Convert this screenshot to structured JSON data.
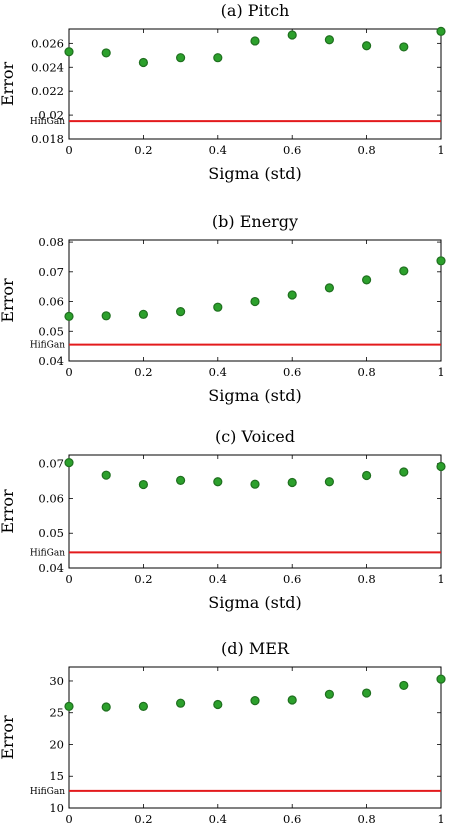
{
  "colors": {
    "marker": "#2ca02c",
    "marker_edge": "#1f6f1f",
    "baseline": "#e31a1c"
  },
  "chart_data": [
    {
      "type": "scatter",
      "title": "(a) Pitch",
      "xlabel": "Sigma (std)",
      "ylabel": "Error",
      "xlim": [
        0,
        1
      ],
      "ylim": [
        0.018,
        0.0272
      ],
      "xticks": [
        {
          "v": 0,
          "label": "0"
        },
        {
          "v": 0.2,
          "label": "0.2"
        },
        {
          "v": 0.4,
          "label": "0.4"
        },
        {
          "v": 0.6,
          "label": "0.6"
        },
        {
          "v": 0.8,
          "label": "0.8"
        },
        {
          "v": 1,
          "label": "1"
        }
      ],
      "yticks": [
        {
          "v": 0.018,
          "label": "0.018"
        },
        {
          "v": 0.02,
          "label": "0.02"
        },
        {
          "v": 0.022,
          "label": "0.022"
        },
        {
          "v": 0.024,
          "label": "0.024"
        },
        {
          "v": 0.026,
          "label": "0.026"
        }
      ],
      "baseline": {
        "label": "HifiGan",
        "value": 0.0195
      },
      "x": [
        0,
        0.1,
        0.2,
        0.3,
        0.4,
        0.5,
        0.6,
        0.7,
        0.8,
        0.9,
        1.0
      ],
      "y": [
        0.0253,
        0.0252,
        0.0244,
        0.0248,
        0.0248,
        0.0262,
        0.0267,
        0.0263,
        0.0258,
        0.0257,
        0.027
      ]
    },
    {
      "type": "scatter",
      "title": "(b) Energy",
      "xlabel": "Sigma (std)",
      "ylabel": "Error",
      "xlim": [
        0,
        1
      ],
      "ylim": [
        0.04,
        0.0807
      ],
      "xticks": [
        {
          "v": 0,
          "label": "0"
        },
        {
          "v": 0.2,
          "label": "0.2"
        },
        {
          "v": 0.4,
          "label": "0.4"
        },
        {
          "v": 0.6,
          "label": "0.6"
        },
        {
          "v": 0.8,
          "label": "0.8"
        },
        {
          "v": 1,
          "label": "1"
        }
      ],
      "yticks": [
        {
          "v": 0.04,
          "label": "0.04"
        },
        {
          "v": 0.05,
          "label": "0.05"
        },
        {
          "v": 0.06,
          "label": "0.06"
        },
        {
          "v": 0.07,
          "label": "0.07"
        },
        {
          "v": 0.08,
          "label": "0.08"
        }
      ],
      "baseline": {
        "label": "HifiGan",
        "value": 0.0455
      },
      "x": [
        0,
        0.1,
        0.2,
        0.3,
        0.4,
        0.5,
        0.6,
        0.7,
        0.8,
        0.9,
        1.0
      ],
      "y": [
        0.055,
        0.0552,
        0.0557,
        0.0566,
        0.0581,
        0.06,
        0.0622,
        0.0646,
        0.0673,
        0.0703,
        0.0737
      ]
    },
    {
      "type": "scatter",
      "title": "(c) Voiced",
      "xlabel": "Sigma (std)",
      "ylabel": "Error",
      "xlim": [
        0,
        1
      ],
      "ylim": [
        0.04,
        0.0725
      ],
      "xticks": [
        {
          "v": 0,
          "label": "0"
        },
        {
          "v": 0.2,
          "label": "0.2"
        },
        {
          "v": 0.4,
          "label": "0.4"
        },
        {
          "v": 0.6,
          "label": "0.6"
        },
        {
          "v": 0.8,
          "label": "0.8"
        },
        {
          "v": 1,
          "label": "1"
        }
      ],
      "yticks": [
        {
          "v": 0.04,
          "label": "0.04"
        },
        {
          "v": 0.05,
          "label": "0.05"
        },
        {
          "v": 0.06,
          "label": "0.06"
        },
        {
          "v": 0.07,
          "label": "0.07"
        }
      ],
      "baseline": {
        "label": "HifiGan",
        "value": 0.0445
      },
      "x": [
        0,
        0.1,
        0.2,
        0.3,
        0.4,
        0.5,
        0.6,
        0.7,
        0.8,
        0.9,
        1.0
      ],
      "y": [
        0.0703,
        0.0667,
        0.064,
        0.0652,
        0.0648,
        0.0641,
        0.0646,
        0.0648,
        0.0666,
        0.0676,
        0.0692
      ]
    },
    {
      "type": "scatter",
      "title": "(d) MER",
      "xlabel": "Sigma (std)",
      "ylabel": "Error",
      "xlim": [
        0,
        1
      ],
      "ylim": [
        10,
        32.2
      ],
      "xticks": [
        {
          "v": 0,
          "label": "0"
        },
        {
          "v": 0.2,
          "label": "0.2"
        },
        {
          "v": 0.4,
          "label": "0.4"
        },
        {
          "v": 0.6,
          "label": "0.6"
        },
        {
          "v": 0.8,
          "label": "0.8"
        },
        {
          "v": 1,
          "label": "1"
        }
      ],
      "yticks": [
        {
          "v": 10,
          "label": "10"
        },
        {
          "v": 15,
          "label": "15"
        },
        {
          "v": 20,
          "label": "20"
        },
        {
          "v": 25,
          "label": "25"
        },
        {
          "v": 30,
          "label": "30"
        }
      ],
      "baseline": {
        "label": "HifiGan",
        "value": 12.7
      },
      "x": [
        0,
        0.1,
        0.2,
        0.3,
        0.4,
        0.5,
        0.6,
        0.7,
        0.8,
        0.9,
        1.0
      ],
      "y": [
        26.0,
        25.9,
        26.0,
        26.5,
        26.3,
        26.9,
        27.0,
        27.9,
        28.1,
        29.3,
        30.3
      ]
    }
  ]
}
